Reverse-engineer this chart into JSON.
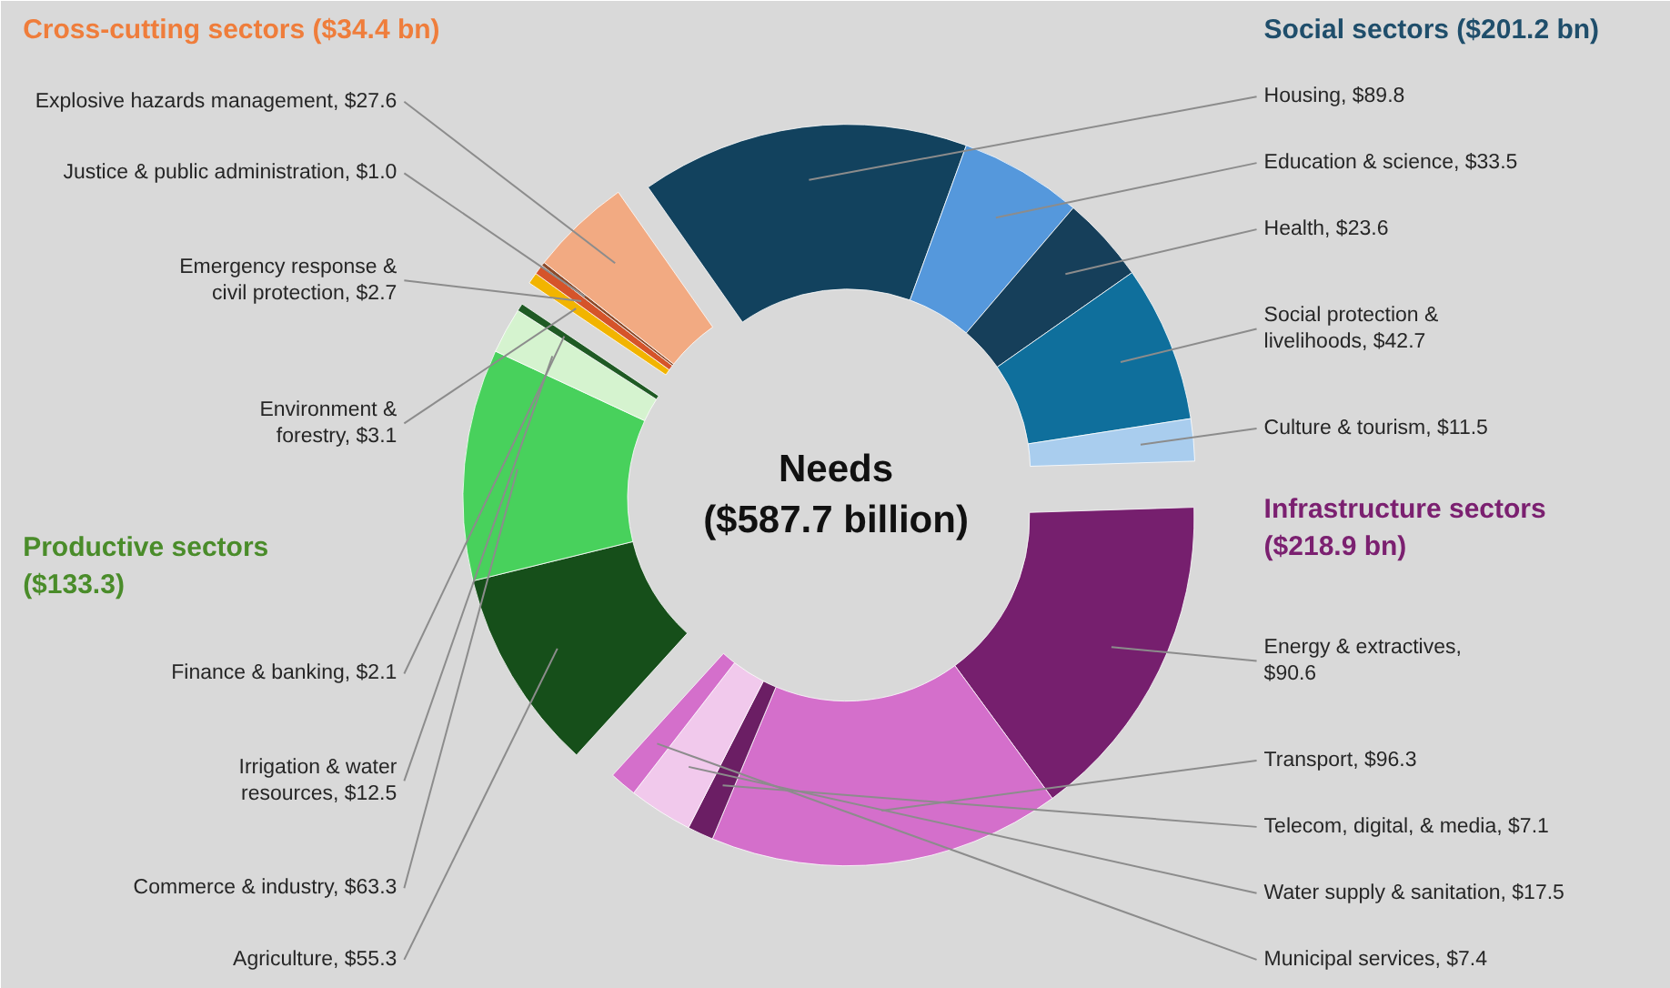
{
  "chart_data": {
    "type": "donut",
    "title": "Needs\n($587.7 billion)",
    "categories": [
      "Housing, $89.8",
      "Education & science, $33.5",
      "Health, $23.6",
      "Social protection &\nlivelihoods, $42.7",
      "Culture & tourism, $11.5",
      "Energy & extractives,\n$90.6",
      "Transport, $96.3",
      "Telecom, digital, & media, $7.1",
      "Water supply & sanitation, $17.5",
      "Municipal services, $7.4",
      "Agriculture, $55.3",
      "Commerce & industry, $63.3",
      "Irrigation & water\nresources, $12.5",
      "Finance & banking, $2.1",
      "Environment &\nforestry, $3.1",
      "Emergency response &\ncivil protection, $2.7",
      "Justice & public administration, $1.0",
      "Explosive hazards management, $27.6"
    ],
    "values": [
      89.8,
      33.5,
      23.6,
      42.7,
      11.5,
      90.6,
      96.3,
      7.1,
      17.5,
      7.4,
      55.3,
      63.3,
      12.5,
      2.1,
      3.1,
      2.7,
      1.0,
      27.6
    ],
    "colors": [
      "#12425e",
      "#5598dc",
      "#163f5a",
      "#0f6f9c",
      "#a9cdee",
      "#761f6e",
      "#d46fcb",
      "#6b1e64",
      "#f1c9ec",
      "#d46fcb",
      "#164f1a",
      "#48d15c",
      "#d5f3cf",
      "#1f5a24",
      "#f2b400",
      "#d5542a",
      "#8c4a2a",
      "#f2aa82"
    ],
    "annotations": [
      "Social sectors ($201.2 bn)",
      "Infrastructure sectors\n($218.9 bn)",
      "Productive sectors\n($133.3)",
      "Cross-cutting sectors ($34.4 bn)"
    ]
  }
}
